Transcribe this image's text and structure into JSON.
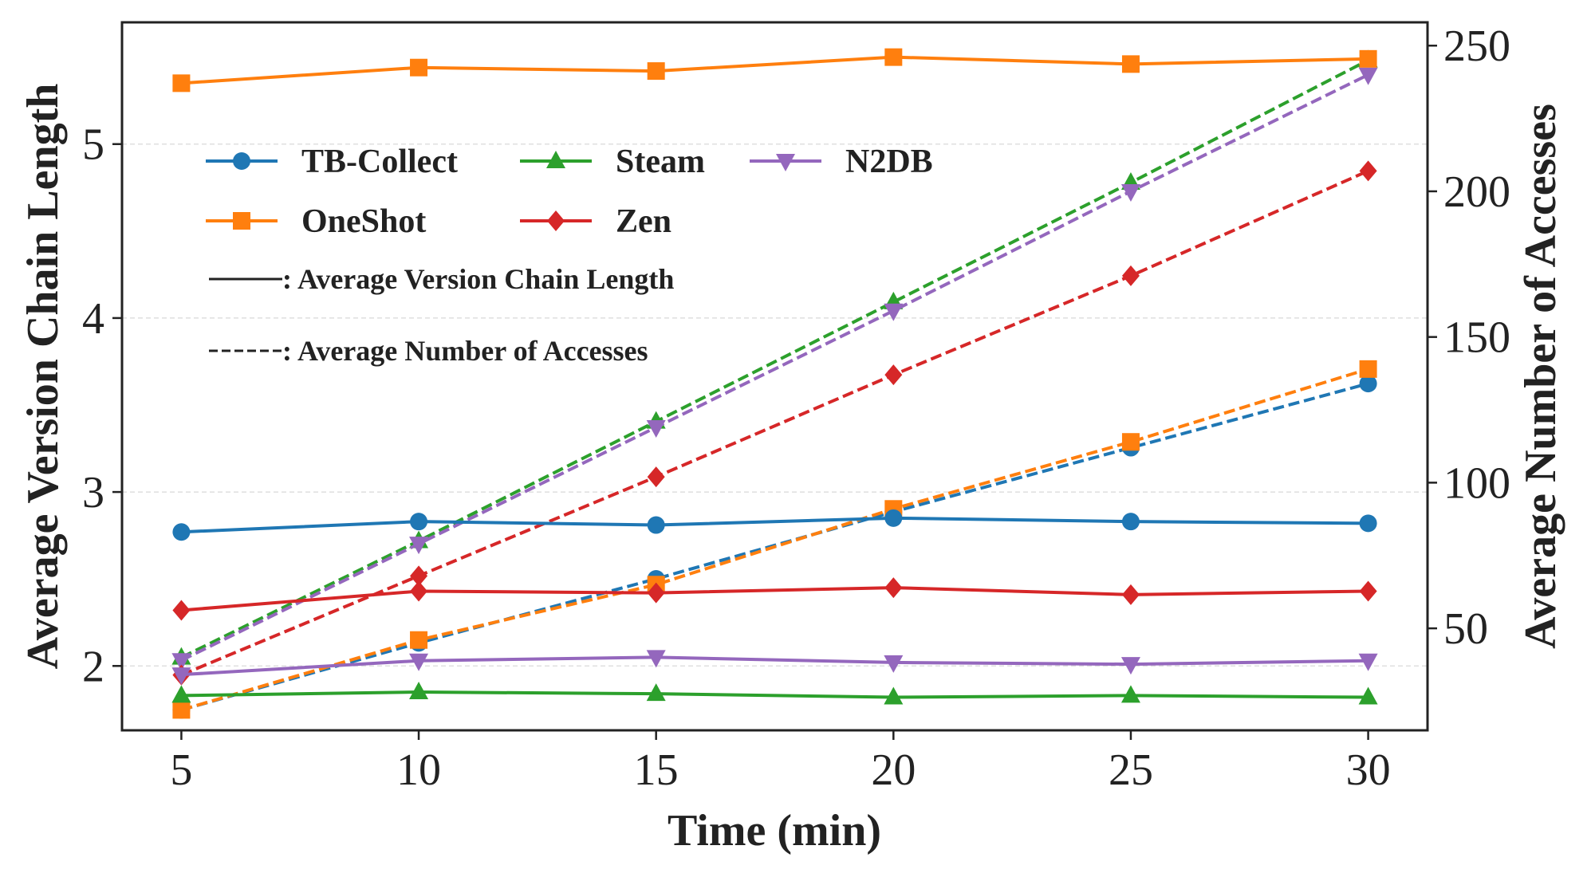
{
  "chart_data": {
    "type": "line",
    "xlabel": "Time (min)",
    "ylabel_left": "Average Version Chain Length",
    "ylabel_right": "Average Number of Accesses",
    "x": [
      5,
      10,
      15,
      20,
      25,
      30
    ],
    "x_ticks": [
      "5",
      "10",
      "15",
      "20",
      "25",
      "30"
    ],
    "y_left_ticks": [
      "2",
      "3",
      "4",
      "5"
    ],
    "y_right_ticks": [
      "50",
      "100",
      "150",
      "200",
      "250"
    ],
    "ylim_left": [
      1.63,
      5.7
    ],
    "ylim_right": [
      15,
      258
    ],
    "grid": true,
    "legend_position": "top-left",
    "series": [
      {
        "name": "TB-Collect",
        "color": "#1f77b4",
        "marker": "circle",
        "chain_length": [
          2.77,
          2.83,
          2.81,
          2.85,
          2.83,
          2.82
        ],
        "accesses": [
          22,
          45,
          67,
          90,
          112,
          134
        ]
      },
      {
        "name": "Steam",
        "color": "#2ca02c",
        "marker": "triangle-up",
        "chain_length": [
          1.83,
          1.85,
          1.84,
          1.82,
          1.83,
          1.82
        ],
        "accesses": [
          40,
          80,
          121,
          162,
          203,
          245
        ]
      },
      {
        "name": "N2DB",
        "color": "#9467bd",
        "marker": "triangle-down",
        "chain_length": [
          1.95,
          2.03,
          2.05,
          2.02,
          2.01,
          2.03
        ],
        "accesses": [
          39,
          79,
          119,
          159,
          200,
          240
        ]
      },
      {
        "name": "OneShot",
        "color": "#ff7f0e",
        "marker": "square",
        "chain_length": [
          5.35,
          5.44,
          5.42,
          5.5,
          5.46,
          5.49
        ],
        "accesses": [
          22,
          46,
          65,
          91,
          114,
          139
        ]
      },
      {
        "name": "Zen",
        "color": "#d62728",
        "marker": "diamond",
        "chain_length": [
          2.32,
          2.43,
          2.42,
          2.45,
          2.41,
          2.43
        ],
        "accesses": [
          34,
          68,
          102,
          137,
          171,
          207
        ]
      }
    ],
    "annotations": [
      {
        "style": "solid",
        "text": ": Average Version Chain Length"
      },
      {
        "style": "dashed",
        "text": ": Average Number of Accesses"
      }
    ]
  }
}
